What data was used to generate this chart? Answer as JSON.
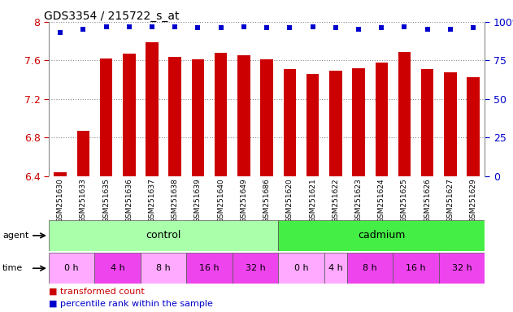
{
  "title": "GDS3354 / 215722_s_at",
  "samples": [
    "GSM251630",
    "GSM251633",
    "GSM251635",
    "GSM251636",
    "GSM251637",
    "GSM251638",
    "GSM251639",
    "GSM251640",
    "GSM251649",
    "GSM251686",
    "GSM251620",
    "GSM251621",
    "GSM251622",
    "GSM251623",
    "GSM251624",
    "GSM251625",
    "GSM251626",
    "GSM251627",
    "GSM251629"
  ],
  "bar_values": [
    6.44,
    6.87,
    7.62,
    7.67,
    7.79,
    7.64,
    7.61,
    7.68,
    7.65,
    7.61,
    7.51,
    7.46,
    7.49,
    7.52,
    7.58,
    7.69,
    7.51,
    7.48,
    7.43
  ],
  "percentile_values": [
    93,
    95,
    97,
    97,
    97,
    97,
    96,
    96,
    97,
    96,
    96,
    97,
    96,
    95,
    96,
    97,
    95,
    95,
    96
  ],
  "bar_color": "#cc0000",
  "percentile_color": "#0000cc",
  "ylim_left": [
    6.4,
    8.0
  ],
  "ylim_right": [
    0,
    100
  ],
  "yticks_left": [
    6.4,
    6.8,
    7.2,
    7.6,
    8.0
  ],
  "yticks_right": [
    0,
    25,
    50,
    75,
    100
  ],
  "control_count": 10,
  "cadmium_count": 9,
  "control_color": "#aaffaa",
  "cadmium_color": "#44ee44",
  "time_segments": [
    {
      "name": "0 h",
      "count": 2,
      "color": "#ffaaff"
    },
    {
      "name": "4 h",
      "count": 2,
      "color": "#ee44ee"
    },
    {
      "name": "8 h",
      "count": 2,
      "color": "#ffaaff"
    },
    {
      "name": "16 h",
      "count": 2,
      "color": "#ee44ee"
    },
    {
      "name": "32 h",
      "count": 2,
      "color": "#ee44ee"
    },
    {
      "name": "0 h",
      "count": 2,
      "color": "#ffaaff"
    },
    {
      "name": "4 h",
      "count": 1,
      "color": "#ffaaff"
    },
    {
      "name": "8 h",
      "count": 2,
      "color": "#ee44ee"
    },
    {
      "name": "16 h",
      "count": 2,
      "color": "#ee44ee"
    },
    {
      "name": "32 h",
      "count": 2,
      "color": "#ee44ee"
    }
  ],
  "legend_items": [
    {
      "label": "transformed count",
      "color": "#cc0000"
    },
    {
      "label": "percentile rank within the sample",
      "color": "#0000cc"
    }
  ],
  "ytick_left_color": "#cc0000",
  "ytick_right_color": "#0000cc",
  "xtick_bg_color": "#cccccc",
  "bar_width": 0.55
}
